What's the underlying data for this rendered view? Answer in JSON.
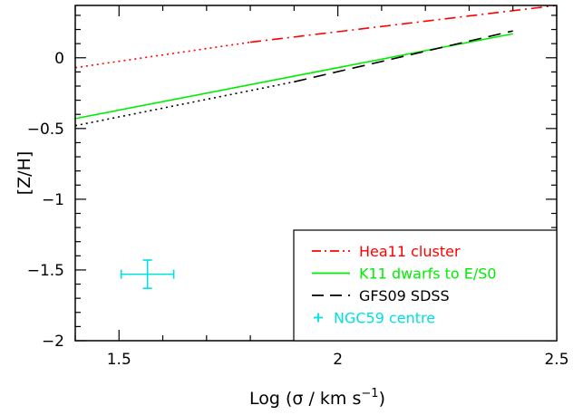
{
  "chart_data": {
    "type": "line",
    "title": "",
    "xlabel": "Log (σ / km s",
    "xlabel_sup": "−1",
    "xlabel_close": ")",
    "ylabel": "[Z/H]",
    "xlim": [
      1.4,
      2.5
    ],
    "ylim": [
      -2,
      0.37
    ],
    "xticks": [
      1.5,
      2,
      2.5
    ],
    "xtick_labels": [
      "1.5",
      "2",
      "2.5"
    ],
    "yticks": [
      0,
      -0.5,
      -1,
      -1.5,
      -2
    ],
    "ytick_labels": [
      "0",
      "−0.5",
      "−1",
      "−1.5",
      "−2"
    ],
    "grid": false,
    "legend_position": "bottom-right",
    "series": [
      {
        "name": "Hea11 cluster",
        "color": "#ff0000",
        "segments": [
          {
            "style": "dotted",
            "x": [
              1.4,
              1.8
            ],
            "y": [
              -0.07,
              0.11
            ]
          },
          {
            "style": "dashdot",
            "x": [
              1.8,
              2.5
            ],
            "y": [
              0.11,
              0.37
            ]
          }
        ]
      },
      {
        "name": "K11 dwarfs to E/S0",
        "color": "#00ee00",
        "segments": [
          {
            "style": "solid",
            "x": [
              1.4,
              2.4
            ],
            "y": [
              -0.43,
              0.17
            ]
          }
        ]
      },
      {
        "name": "GFS09 SDSS",
        "color": "#000000",
        "segments": [
          {
            "style": "dotted",
            "x": [
              1.4,
              1.9
            ],
            "y": [
              -0.48,
              -0.17
            ]
          },
          {
            "style": "dashed",
            "x": [
              1.9,
              2.4
            ],
            "y": [
              -0.17,
              0.19
            ]
          }
        ]
      },
      {
        "name": "NGC59 centre",
        "color": "#00e0e0",
        "type": "errorbar-point",
        "x": 1.565,
        "y": -1.53,
        "xerr": 0.06,
        "yerr": 0.1
      }
    ],
    "legend": [
      {
        "label": "Hea11 cluster",
        "color": "#ff0000",
        "style": "dashdot"
      },
      {
        "label": "K11 dwarfs to E/S0",
        "color": "#00ee00",
        "style": "solid"
      },
      {
        "label": "GFS09 SDSS",
        "color": "#000000",
        "style": "dashed"
      },
      {
        "label": "NGC59 centre",
        "color": "#00e0e0",
        "style": "plus",
        "marker": "+"
      }
    ]
  }
}
